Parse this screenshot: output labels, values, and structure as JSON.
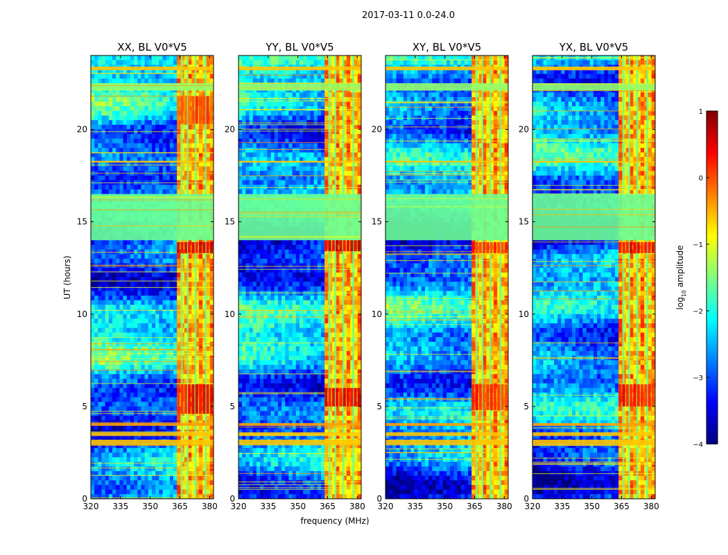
{
  "chart_data": {
    "type": "heatmap",
    "suptitle": "2017-03-11 0.0-24.0",
    "xlabel": "frequency (MHz)",
    "ylabel": "UT (hours)",
    "xlim": [
      320,
      382
    ],
    "ylim": [
      0,
      24
    ],
    "xticks": [
      320,
      335,
      350,
      365,
      380
    ],
    "yticks": [
      0,
      5,
      10,
      15,
      20
    ],
    "panels": [
      {
        "title": "XX, BL V0*V5"
      },
      {
        "title": "YY, BL V0*V5"
      },
      {
        "title": "XY, BL V0*V5"
      },
      {
        "title": "YX, BL V0*V5"
      }
    ],
    "colorbar": {
      "label": "log10 amplitude",
      "label_base": "log",
      "label_sub": "10",
      "label_rest": " amplitude",
      "range": [
        -4,
        1
      ],
      "ticks": [
        1,
        0,
        -1,
        -2,
        -3,
        -4
      ],
      "tick_labels": [
        "1",
        "0",
        "−1",
        "−2",
        "−3",
        "−4"
      ],
      "colormap": "jet"
    },
    "rfi_band_mhz": [
      363.5,
      382
    ],
    "rfi_columns_mhz": [
      366,
      369,
      373,
      378
    ],
    "horizontal_bands_hours": [
      {
        "t0": 2.9,
        "t1": 3.2,
        "level": -0.6
      },
      {
        "t0": 3.4,
        "t1": 3.6,
        "level": -0.6
      },
      {
        "t0": 3.95,
        "t1": 4.1,
        "level": -0.4
      },
      {
        "t0": 14.0,
        "t1": 16.5,
        "level": -1.6
      },
      {
        "t0": 18.2,
        "t1": 18.3,
        "level": -0.6
      },
      {
        "t0": 22.1,
        "t1": 22.5,
        "level": -1.4
      },
      {
        "t0": 23.2,
        "t1": 23.4,
        "level": -0.6
      }
    ],
    "hot_regions": [
      {
        "panel": 0,
        "t0": 13.3,
        "t1": 13.9,
        "level": 0.5
      },
      {
        "panel": 0,
        "t0": 4.6,
        "t1": 6.2,
        "level": 0.4
      },
      {
        "panel": 0,
        "t0": 20.3,
        "t1": 21.8,
        "level": 0.0
      },
      {
        "panel": 1,
        "t0": 13.4,
        "t1": 14.0,
        "level": 0.6
      },
      {
        "panel": 1,
        "t0": 5.0,
        "t1": 6.0,
        "level": 0.5
      },
      {
        "panel": 2,
        "t0": 13.3,
        "t1": 13.9,
        "level": 0.2
      },
      {
        "panel": 2,
        "t0": 4.8,
        "t1": 6.2,
        "level": 0.2
      },
      {
        "panel": 3,
        "t0": 13.3,
        "t1": 13.9,
        "level": 0.4
      },
      {
        "panel": 3,
        "t0": 5.0,
        "t1": 6.2,
        "level": 0.3
      }
    ]
  }
}
